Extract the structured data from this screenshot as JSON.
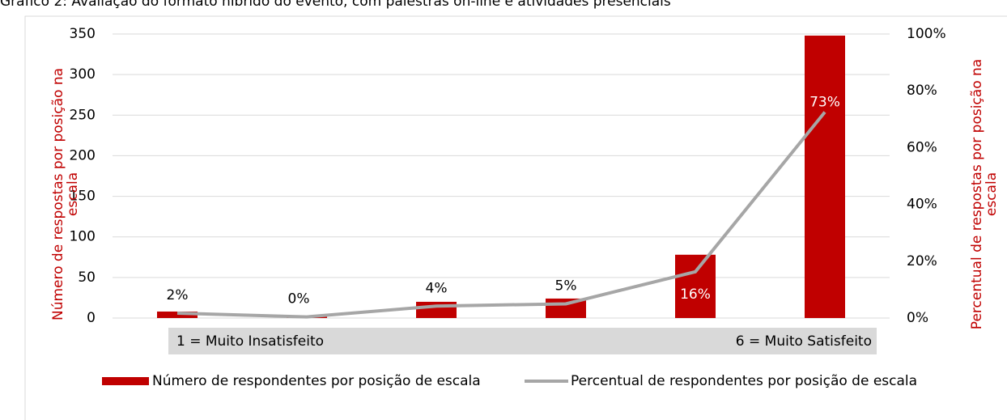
{
  "chart_data": {
    "type": "bar",
    "title": "Gráfico 2: Avaliação do formato híbrido do evento, com palestras on-line e atividades presenciais",
    "categories": [
      null,
      null,
      null,
      null,
      null,
      null
    ],
    "series": [
      {
        "name": "Número de respondentes por posição de escala",
        "color": "#c00000",
        "type": "bar",
        "values": [
          8,
          2,
          20,
          24,
          78,
          348
        ]
      },
      {
        "name": "Percentual de respondentes por posição de escala",
        "color": "#a6a6a6",
        "type": "line",
        "axis": "y2",
        "values": [
          1.7,
          0.4,
          4.2,
          5.0,
          16.3,
          72.5
        ],
        "value_labels": [
          "2%",
          "0%",
          "4%",
          "5%",
          "16%",
          "73%"
        ]
      }
    ],
    "ylim": [
      0,
      350
    ],
    "yticks": [
      0,
      50,
      100,
      150,
      200,
      250,
      300,
      350
    ],
    "y2lim": [
      0,
      100
    ],
    "y2ticks": [
      {
        "value": 0,
        "label": "0%"
      },
      {
        "value": 20,
        "label": "20%"
      },
      {
        "value": 40,
        "label": "40%"
      },
      {
        "value": 60,
        "label": "60%"
      },
      {
        "value": 80,
        "label": "80%"
      },
      {
        "value": 100,
        "label": "100%"
      }
    ],
    "y_label": [
      "Número de respostas por posição na",
      "escala"
    ],
    "y2_label": [
      "Percentual de respostas por posição na",
      "escala"
    ],
    "annotations": [
      "1 = Muito Insatisfeito",
      "6 = Muito Satisfeito"
    ],
    "grid": true,
    "legend": "bottom"
  }
}
